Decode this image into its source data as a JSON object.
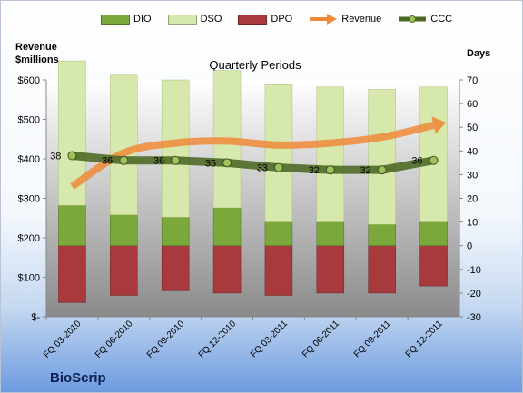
{
  "brand": "BioScrip",
  "left_axis_title_line1": "Revenue",
  "left_axis_title_line2": "$millions",
  "right_axis_title": "Days",
  "chart_title": "Quarterly Periods",
  "colors": {
    "dio": "#7aa83a",
    "dso": "#d7e8ad",
    "dpo": "#a83a3e",
    "revenue": "#ee8a3a",
    "ccc": "#4f6a28",
    "plot_bg_top": "#ffffff",
    "plot_bg_bottom": "#8a8a8a"
  },
  "chart_data": {
    "type": "bar",
    "categories": [
      "FQ 03-2010",
      "FQ 06-2010",
      "FQ 09-2010",
      "FQ 12-2010",
      "FQ 03-2011",
      "FQ 06-2011",
      "FQ 09-2011",
      "FQ 12-2011"
    ],
    "left_axis": {
      "ylim": [
        0,
        600
      ],
      "ticks": [
        "$-",
        "$100",
        "$200",
        "$300",
        "$400",
        "$500",
        "$600"
      ]
    },
    "right_axis": {
      "ylim": [
        -30,
        70
      ],
      "ticks": [
        "-30",
        "-20",
        "-10",
        "0",
        "10",
        "20",
        "30",
        "40",
        "50",
        "60",
        "70"
      ]
    },
    "legend": [
      "DIO",
      "DSO",
      "DPO",
      "Revenue",
      "CCC"
    ],
    "legend_position": "top",
    "series": [
      {
        "name": "DIO",
        "type": "stacked-bar",
        "axis": "right",
        "values": [
          17,
          13,
          12,
          16,
          10,
          10,
          9,
          10
        ]
      },
      {
        "name": "DSO",
        "type": "stacked-bar",
        "axis": "right",
        "values": [
          61,
          59,
          58,
          58,
          58,
          57,
          57,
          57
        ]
      },
      {
        "name": "DPO",
        "type": "bar-below-zero",
        "axis": "right",
        "values": [
          -24,
          -21,
          -19,
          -20,
          -21,
          -20,
          -20,
          -17
        ]
      },
      {
        "name": "Revenue",
        "type": "line-arrow",
        "axis": "left",
        "values": [
          330,
          415,
          440,
          445,
          435,
          440,
          455,
          485
        ]
      },
      {
        "name": "CCC",
        "type": "line",
        "axis": "right",
        "values": [
          38,
          36,
          36,
          35,
          33,
          32,
          32,
          36
        ],
        "labels": [
          "38",
          "36",
          "36",
          "35",
          "33",
          "32",
          "32",
          "36"
        ]
      }
    ]
  }
}
